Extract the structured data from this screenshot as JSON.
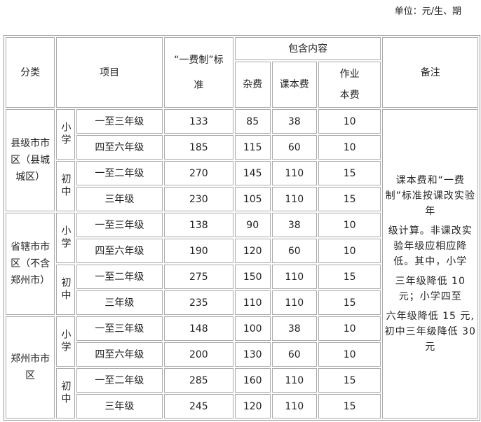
{
  "unit_label": "单位：元/生、期",
  "headers": {
    "category": "分类",
    "item": "项目",
    "standard": "“一费制”标准",
    "includes": "包含内容",
    "misc": "杂费",
    "textbook": "课本费",
    "workbook": "作业本费",
    "notes": "备注"
  },
  "groups": [
    {
      "name": "县级市市区（县城城区）",
      "levels": [
        {
          "level": "小学",
          "rows": [
            [
              "一至三年级",
              "133",
              "85",
              "38",
              "10"
            ],
            [
              "四至六年级",
              "185",
              "115",
              "60",
              "10"
            ]
          ]
        },
        {
          "level": "初中",
          "rows": [
            [
              "一至二年级",
              "270",
              "145",
              "110",
              "15"
            ],
            [
              "三年级",
              "230",
              "105",
              "110",
              "15"
            ]
          ]
        }
      ]
    },
    {
      "name": "省辖市市区（不含郑州市）",
      "levels": [
        {
          "level": "小学",
          "rows": [
            [
              "一至三年级",
              "138",
              "90",
              "38",
              "10"
            ],
            [
              "四至六年级",
              "190",
              "120",
              "60",
              "10"
            ]
          ]
        },
        {
          "level": "初中",
          "rows": [
            [
              "一至二年级",
              "275",
              "150",
              "110",
              "15"
            ],
            [
              "三年级",
              "235",
              "110",
              "110",
              "15"
            ]
          ]
        }
      ]
    },
    {
      "name": "郑州市市区",
      "levels": [
        {
          "level": "小学",
          "rows": [
            [
              "一至三年级",
              "148",
              "100",
              "38",
              "10"
            ],
            [
              "四至六年级",
              "200",
              "130",
              "60",
              "10"
            ]
          ]
        },
        {
          "level": "初中",
          "rows": [
            [
              "一至二年级",
              "285",
              "160",
              "110",
              "15"
            ],
            [
              "三年级",
              "245",
              "120",
              "110",
              "15"
            ]
          ]
        }
      ]
    }
  ],
  "notes": [
    "课本费和“一费制”标准按课改实验年",
    "级计算。非课改实验年级应相应降低。其中，小学",
    "三年级降低 10 元；小学四至",
    "六年级降低 15 元,初中三年级降低 30 元"
  ]
}
